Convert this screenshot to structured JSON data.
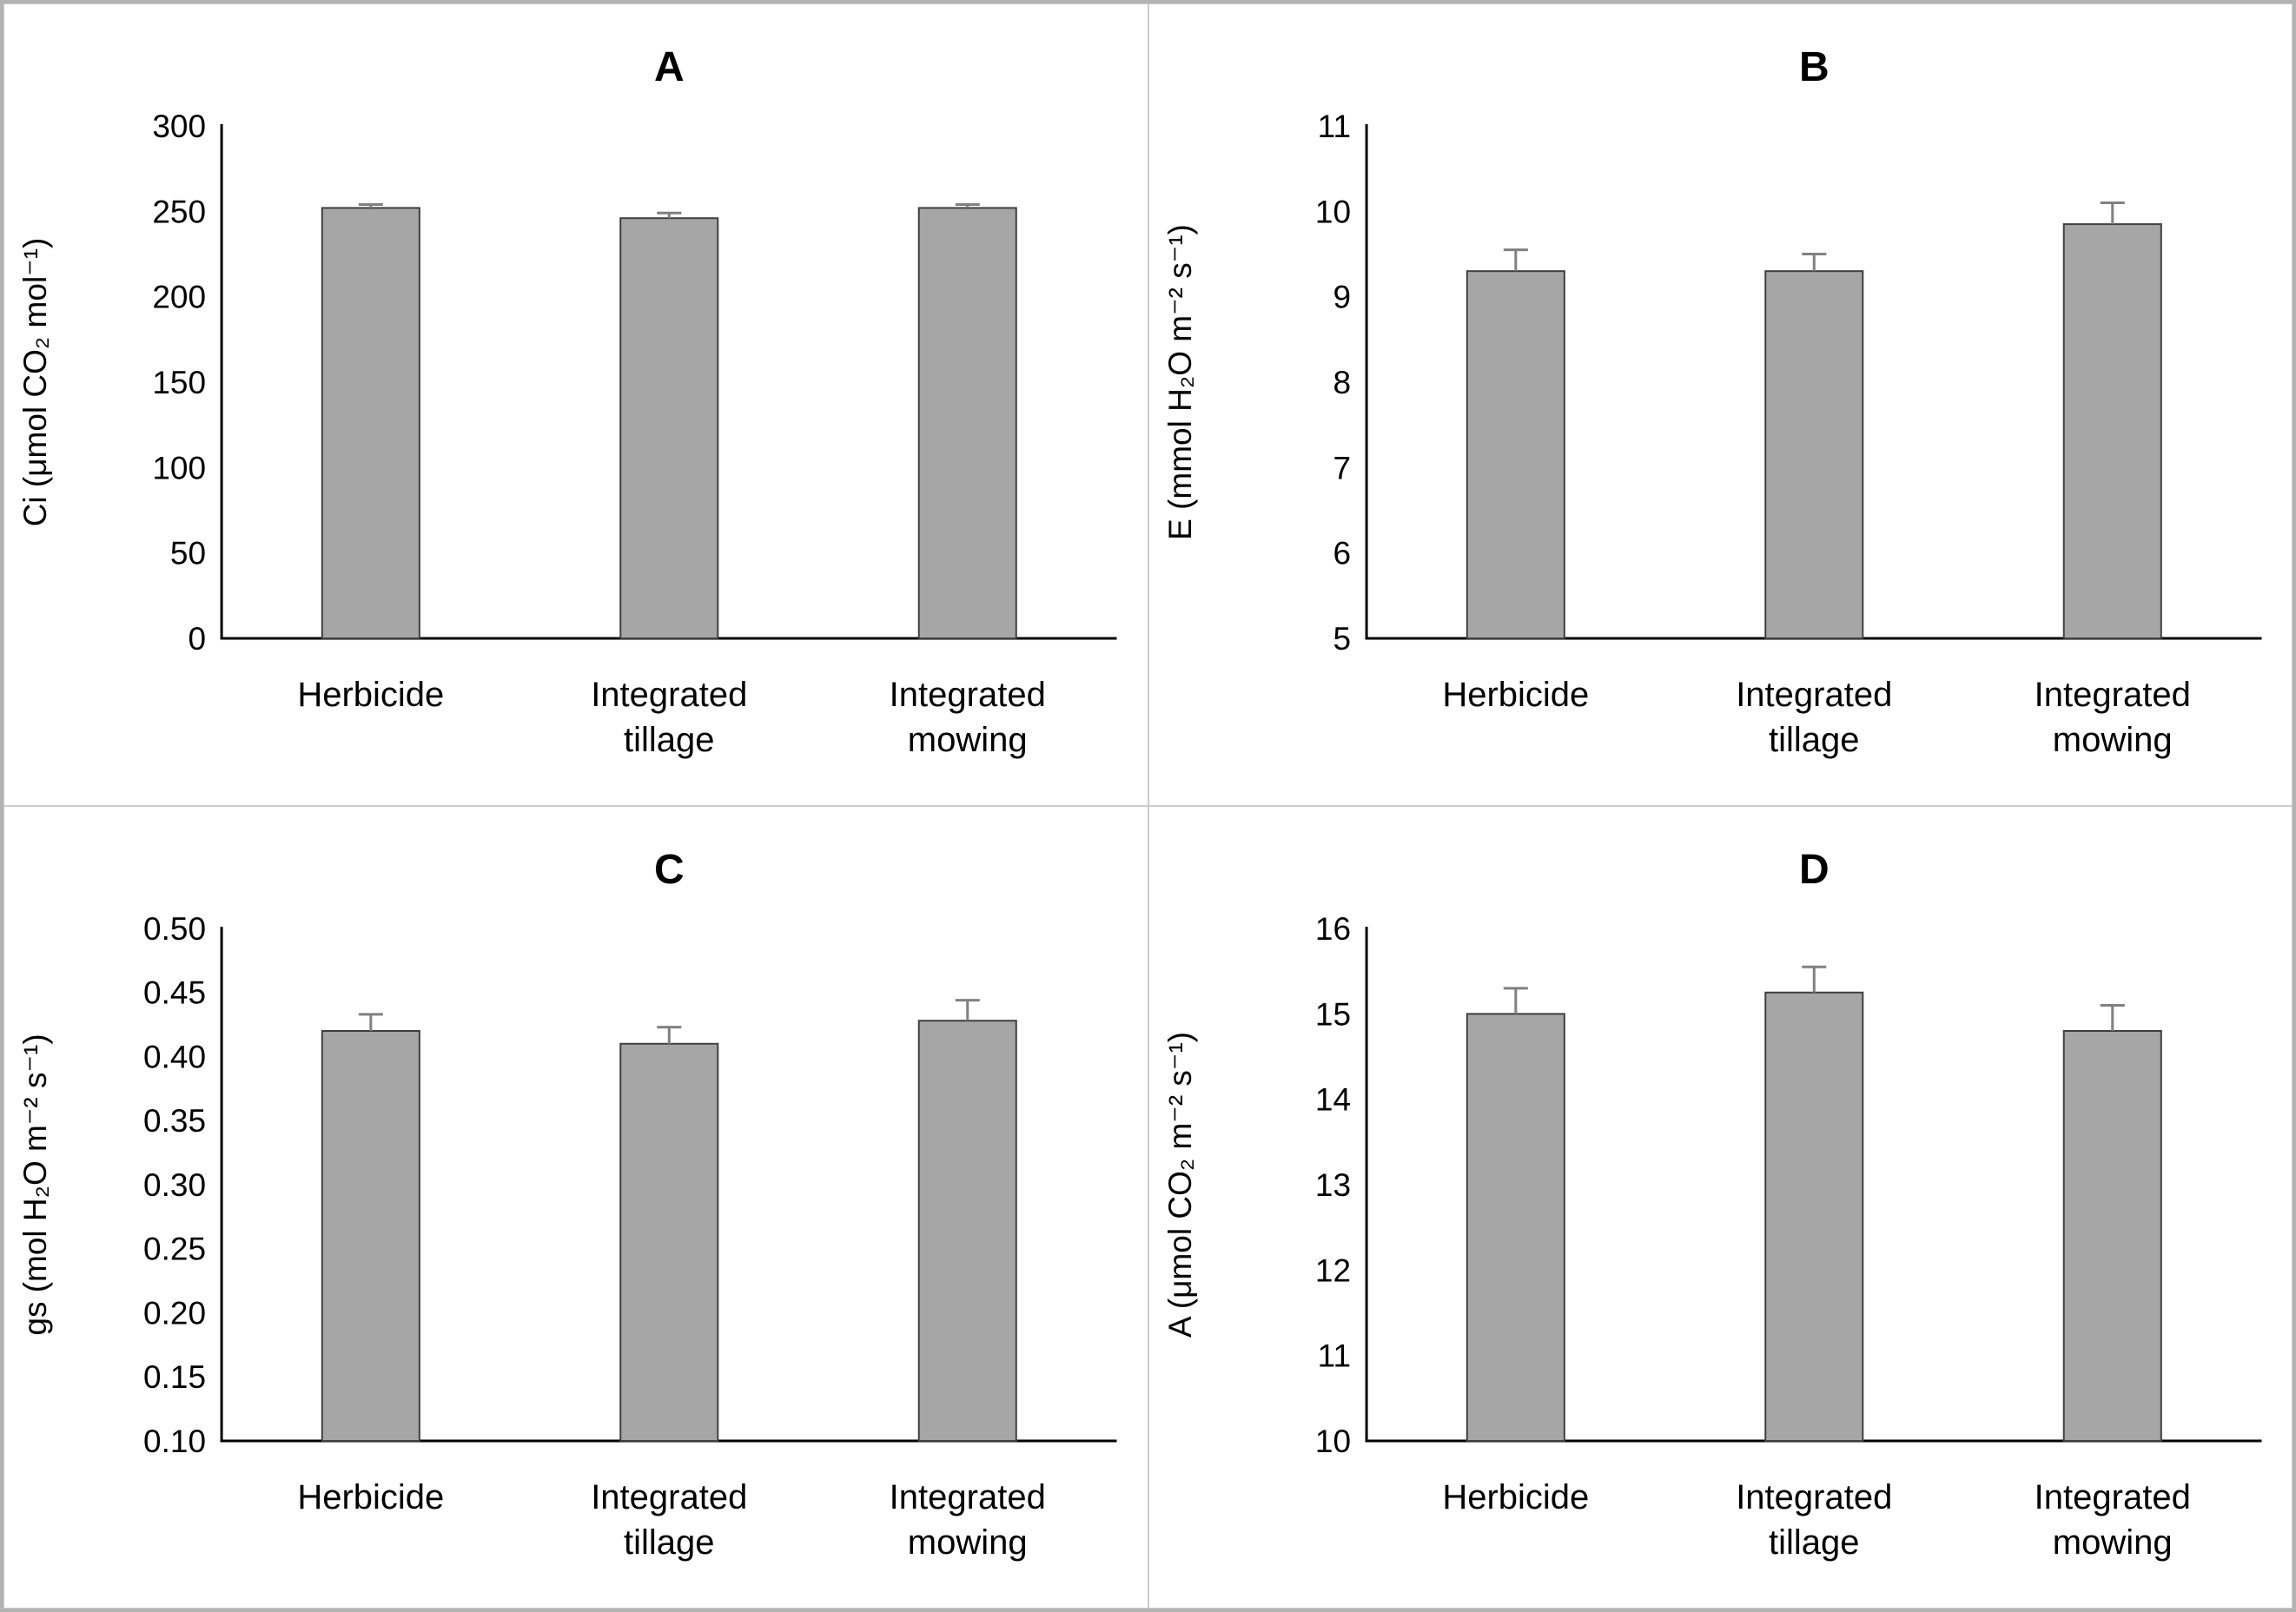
{
  "figure": {
    "background": "#ffffff",
    "outer_border_color": "#b3b3b3",
    "panel_border_color": "#cccccc"
  },
  "chart_data": [
    {
      "id": "A",
      "type": "bar",
      "title": "A",
      "ylabel": "Ci (μmol CO₂ mol⁻¹)",
      "xlabel": "",
      "categories": [
        "Herbicide",
        "Integrated tillage",
        "Integrated mowing"
      ],
      "values": [
        252,
        246,
        252
      ],
      "errors": [
        2,
        3,
        2
      ],
      "ylim": [
        0,
        300
      ],
      "ytick_step": 50,
      "ytick_decimals": 0,
      "grid": false,
      "legend": "none",
      "bar_color": "#a6a6a6",
      "bar_border": "#404040",
      "error_color": "#808080"
    },
    {
      "id": "B",
      "type": "bar",
      "title": "B",
      "ylabel": "E (mmol H₂O m⁻² s⁻¹)",
      "xlabel": "",
      "categories": [
        "Herbicide",
        "Integrated tillage",
        "Integrated mowing"
      ],
      "values": [
        9.3,
        9.3,
        9.85
      ],
      "errors": [
        0.25,
        0.2,
        0.25
      ],
      "ylim": [
        5,
        11
      ],
      "ytick_step": 1,
      "ytick_decimals": 0,
      "grid": false,
      "legend": "none",
      "bar_color": "#a6a6a6",
      "bar_border": "#404040",
      "error_color": "#808080"
    },
    {
      "id": "C",
      "type": "bar",
      "title": "C",
      "ylabel": "gs (mol H₂O m⁻² s⁻¹)",
      "xlabel": "",
      "categories": [
        "Herbicide",
        "Integrated tillage",
        "Integrated mowing"
      ],
      "values": [
        0.42,
        0.41,
        0.428
      ],
      "errors": [
        0.013,
        0.013,
        0.016
      ],
      "ylim": [
        0.1,
        0.5
      ],
      "ytick_step": 0.05,
      "ytick_decimals": 2,
      "grid": false,
      "legend": "none",
      "bar_color": "#a6a6a6",
      "bar_border": "#404040",
      "error_color": "#808080"
    },
    {
      "id": "D",
      "type": "bar",
      "title": "D",
      "ylabel": "A (μmol CO₂ m⁻² s⁻¹)",
      "xlabel": "",
      "categories": [
        "Herbicide",
        "Integrated tillage",
        "Integrated mowing"
      ],
      "values": [
        15.0,
        15.25,
        14.8
      ],
      "errors": [
        0.3,
        0.3,
        0.3
      ],
      "ylim": [
        10,
        16
      ],
      "ytick_step": 1,
      "ytick_decimals": 0,
      "grid": false,
      "legend": "none",
      "bar_color": "#a6a6a6",
      "bar_border": "#404040",
      "error_color": "#808080"
    }
  ]
}
